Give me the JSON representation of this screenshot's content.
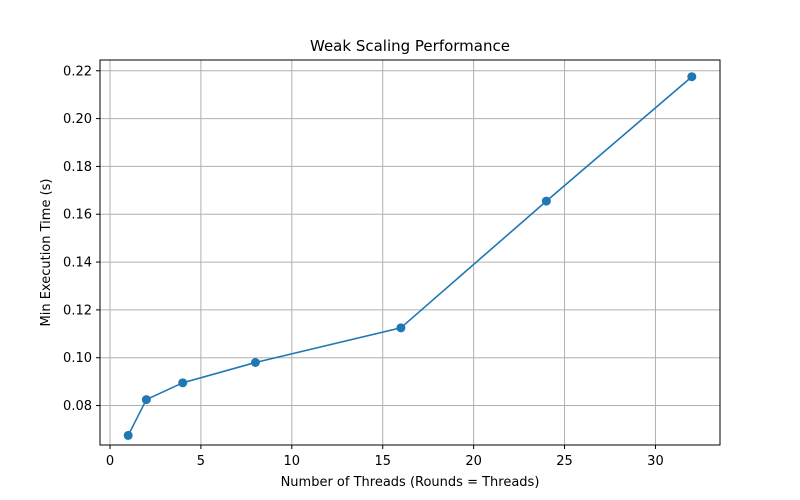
{
  "chart_data": {
    "type": "line",
    "title": "Weak Scaling Performance",
    "xlabel": "Number of Threads (Rounds = Threads)",
    "ylabel": "Min Execution Time (s)",
    "xlim": [
      -0.55,
      33.55
    ],
    "ylim": [
      0.0635,
      0.2245
    ],
    "xticks": [
      0,
      5,
      10,
      15,
      20,
      25,
      30
    ],
    "yticks": [
      0.08,
      0.1,
      0.12,
      0.14,
      0.16,
      0.18,
      0.2,
      0.22
    ],
    "grid": true,
    "series": [
      {
        "color": "#1f77b4",
        "marker": "circle",
        "x": [
          1,
          2,
          4,
          8,
          16,
          24,
          32
        ],
        "y": [
          0.0675,
          0.0825,
          0.0895,
          0.098,
          0.1125,
          0.1655,
          0.2175
        ]
      }
    ]
  }
}
